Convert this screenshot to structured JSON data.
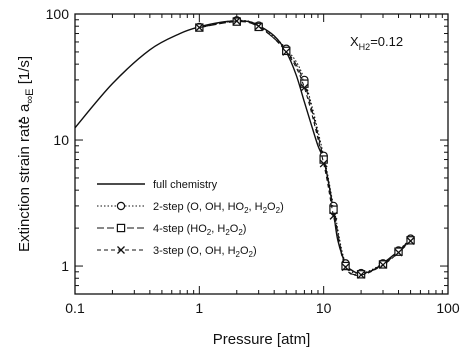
{
  "chart_data": {
    "type": "line",
    "title": "",
    "xlabel": "Pressure  [atm]",
    "ylabel_main": "Extinction strain rate",
    "ylabel_symbol": "a",
    "ylabel_sub": "∞E",
    "ylabel_unit": "[1/s]",
    "x_scale": "log",
    "y_scale": "log",
    "xlim": [
      0.1,
      100
    ],
    "ylim": [
      0.6,
      100
    ],
    "x_ticks": [
      0.1,
      1,
      10,
      100
    ],
    "x_tick_labels": [
      "0.1",
      "1",
      "10",
      "100"
    ],
    "y_ticks": [
      1,
      10,
      100
    ],
    "y_tick_labels": [
      "1",
      "10",
      "100"
    ],
    "grid": false,
    "legend_position": "lower-left",
    "annotation": {
      "main": "X",
      "sub": "H2",
      "rest": "=0.12"
    },
    "series": [
      {
        "name": "full chemistry",
        "marker": "none",
        "dash": "solid",
        "x": [
          0.1,
          0.2,
          0.4,
          0.7,
          1.0,
          1.5,
          2.0,
          2.5,
          3.0,
          4.0,
          5.0,
          6.0,
          7.0,
          8.0,
          9.0,
          10.0,
          11.0,
          12.0,
          13.0,
          15.0,
          17.0,
          20.0,
          25.0,
          30.0,
          40.0,
          50.0
        ],
        "y": [
          12.5,
          28,
          52,
          70,
          79,
          86,
          88,
          87,
          81,
          67,
          50,
          33,
          20,
          13,
          9,
          7,
          4.5,
          2.7,
          1.6,
          1.05,
          0.92,
          0.87,
          0.93,
          1.05,
          1.32,
          1.62
        ]
      },
      {
        "name": "2-step (O, OH, HO2, H2O2)",
        "marker": "circle",
        "dash": "dotted",
        "x": [
          1,
          2,
          3,
          5,
          7,
          10,
          12,
          15,
          20,
          30,
          40,
          50
        ],
        "y": [
          79,
          89,
          81,
          53,
          30,
          7.5,
          3.0,
          1.05,
          0.88,
          1.05,
          1.33,
          1.65
        ]
      },
      {
        "name": "4-step (HO2, H2O2)",
        "marker": "square",
        "dash": "long-dash",
        "x": [
          1,
          2,
          3,
          5,
          7,
          10,
          12,
          15,
          20,
          30,
          40,
          50
        ],
        "y": [
          78,
          87,
          79,
          51,
          28,
          7.0,
          2.8,
          1.0,
          0.86,
          1.03,
          1.3,
          1.6
        ]
      },
      {
        "name": "3-step (O, OH, H2O2)",
        "marker": "x",
        "dash": "dashed",
        "x": [
          1,
          2,
          3,
          5,
          7,
          10,
          12,
          15,
          20,
          30,
          40,
          50
        ],
        "y": [
          78,
          88,
          80,
          50,
          26,
          6.5,
          2.5,
          0.98,
          0.85,
          1.02,
          1.28,
          1.58
        ]
      }
    ]
  },
  "legend_labels": [
    {
      "main": "full chemistry",
      "parts": []
    },
    {
      "main": "2-step (O, OH, HO",
      "parts": [
        {
          "t": "2",
          "sub": true
        },
        {
          "t": ", H",
          "sub": false
        },
        {
          "t": "2",
          "sub": true
        },
        {
          "t": "O",
          "sub": false
        },
        {
          "t": "2",
          "sub": true
        },
        {
          "t": ")",
          "sub": false
        }
      ]
    },
    {
      "main": "4-step (HO",
      "parts": [
        {
          "t": "2",
          "sub": true
        },
        {
          "t": ", H",
          "sub": false
        },
        {
          "t": "2",
          "sub": true
        },
        {
          "t": "O",
          "sub": false
        },
        {
          "t": "2",
          "sub": true
        },
        {
          "t": ")",
          "sub": false
        }
      ]
    },
    {
      "main": "3-step (O, OH, H",
      "parts": [
        {
          "t": "2",
          "sub": true
        },
        {
          "t": "O",
          "sub": false
        },
        {
          "t": "2",
          "sub": true
        },
        {
          "t": ")",
          "sub": false
        }
      ]
    }
  ]
}
